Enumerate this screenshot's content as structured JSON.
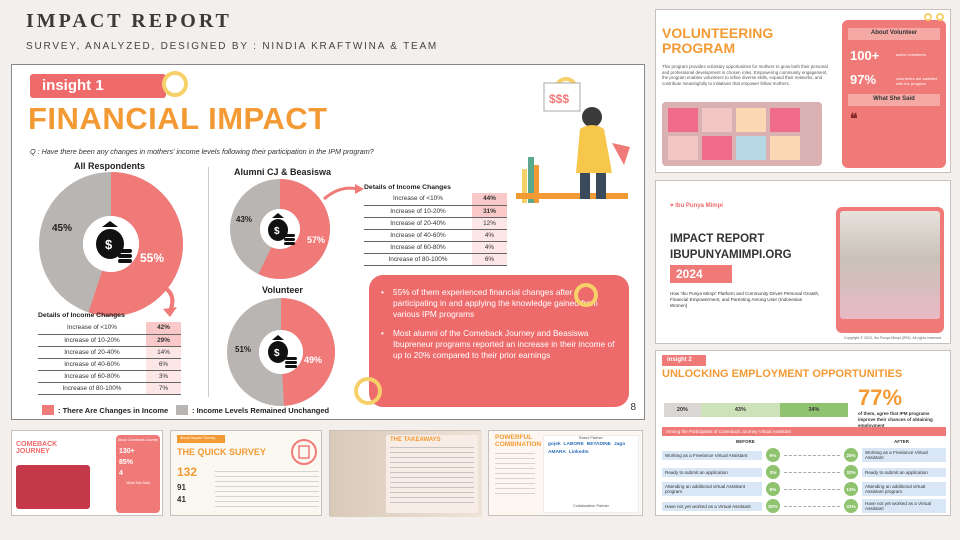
{
  "header": {
    "title": "IMPACT REPORT",
    "subtitle": "SURVEY, ANALYZED, DESIGNED BY : NINDIA KRAFTWINA & TEAM"
  },
  "main_slide": {
    "badge": "insight 1",
    "title": "FINANCIAL IMPACT",
    "question": "Q : Have there been any changes in mothers' income levels following their participation in the IPM program?",
    "page_number": "8",
    "charts": {
      "all_respondents": {
        "label": "All Respondents",
        "changed": "55%",
        "unchanged": "45%"
      },
      "alumni": {
        "label": "Alumni CJ & Beasiswa",
        "changed": "57%",
        "unchanged": "43%"
      },
      "volunteer": {
        "label": "Volunteer",
        "changed": "49%",
        "unchanged": "51%"
      }
    },
    "details_title": "Details of Income Changes",
    "details_alumni": [
      {
        "label": "Increase of <10%",
        "value": "44%"
      },
      {
        "label": "Increase of 10-20%",
        "value": "31%"
      },
      {
        "label": "Increase of 20-40%",
        "value": "12%"
      },
      {
        "label": "Increase of 40-60%",
        "value": "4%"
      },
      {
        "label": "Increase of 60-80%",
        "value": "4%"
      },
      {
        "label": "Increase of 80-100%",
        "value": "6%"
      }
    ],
    "details_all": [
      {
        "label": "Increase of <10%",
        "value": "42%"
      },
      {
        "label": "Increase of 10-20%",
        "value": "29%"
      },
      {
        "label": "Increase of 20-40%",
        "value": "14%"
      },
      {
        "label": "Increase of 40-60%",
        "value": "6%"
      },
      {
        "label": "Increase of 60-80%",
        "value": "3%"
      },
      {
        "label": "Increase of 80-100%",
        "value": "7%"
      }
    ],
    "callout": [
      "55% of them experienced financial changes after participating in and applying the knowledge gained from various IPM programs",
      "Most alumni of the Comeback Journey and Beasiswa Ibupreneur programs reported an increase in their income of up to 20% compared to their prior earnings"
    ],
    "legend": {
      "changed": ": There Are Changes in Income",
      "unchanged": ": Income Levels Remained Unchanged"
    },
    "colors": {
      "changed": "#f07a78",
      "unchanged": "#b9b5b3",
      "accent": "#f39a34"
    }
  },
  "volunteer_slide": {
    "title": "VOLUNTEERING PROGRAM",
    "body": "This program provides voluntary opportunities for mothers to grow both their personal and professional development in chosen roles. Empowering community engagement, the program enables volunteers to refine diverse skills, expand their networks, and contribute meaningfully to initiatives that empower fellow mothers.",
    "about_title": "About Volunteer",
    "stat1": "100+",
    "stat1_desc": "active volunteers",
    "stat2": "97%",
    "stat2_desc": "volunteers are satisfied with the program",
    "said_title": "What She Said"
  },
  "impact_slide": {
    "brand": "Ibu Punya Mimpi",
    "title1": "IMPACT REPORT",
    "title2": "IBUPUNYAMIMPI.ORG",
    "year": "2024",
    "desc": "How 'Ibu Punya Mimpi' Platform and Community Drives Personal Growth, Financial Empowerment, and Parenting Among User (Indonesian Women)",
    "copyright": "Copyright © 2024, Ibu Punya Mimpi (IPM). All rights reserved"
  },
  "employment_slide": {
    "badge": "insight 2",
    "title": "UNLOCKING EMPLOYMENT OPPORTUNITIES",
    "bar_values": [
      "20%",
      "43%",
      "34%"
    ],
    "stat": "77%",
    "stat_desc": "of them, agree that IPM programs improve their chances of obtaining employment",
    "section": "Among the Participants of Comeback Journey Virtual Assistant",
    "before": "BEFORE",
    "after": "AFTER",
    "rows": [
      {
        "b": "6%",
        "a": "25%",
        "text": "Working as a Freelance Virtual Assistant"
      },
      {
        "b": "3%",
        "a": "32%",
        "text": "Ready to submit an application"
      },
      {
        "b": "9%",
        "a": "13%",
        "text": "Attending an additional virtual Assistant program"
      },
      {
        "b": "82%",
        "a": "31%",
        "text": "Have not yet worked as a Virtual Assistant"
      }
    ]
  },
  "thumbnails": {
    "comeback": {
      "title": "COMEBACK JOURNEY",
      "about": "About Comeback Journey",
      "s1": "130+",
      "s2": "85%",
      "s3": "4",
      "said": "What She Said"
    },
    "survey": {
      "tag": "About Impact Survey",
      "title": "THE QUICK SURVEY",
      "n1": "132",
      "n2": "91",
      "n3": "41"
    },
    "takeaways": {
      "title": "THE TAKEAWAYS"
    },
    "powerful": {
      "title": "POWERFUL COMBINATION",
      "brands_title": "Brand Partner",
      "collab_title": "Collaboration Partner",
      "brands": [
        "gojek",
        "LABORE",
        "BETADINE",
        "Jago",
        "AMARA",
        "LinkedIn"
      ]
    }
  }
}
